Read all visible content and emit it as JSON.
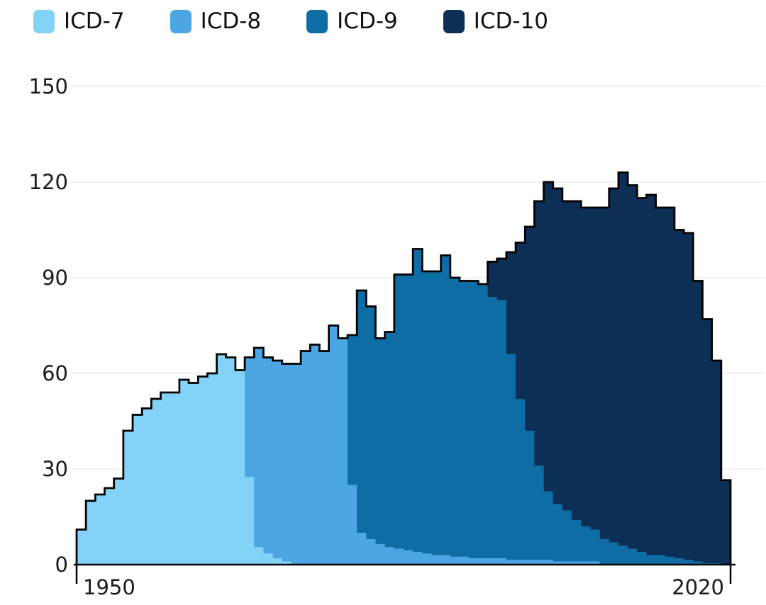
{
  "legend": {
    "items": [
      {
        "label": "ICD-7",
        "color": "#82d3f7"
      },
      {
        "label": "ICD-8",
        "color": "#4ba6e3"
      },
      {
        "label": "ICD-9",
        "color": "#0e6da4"
      },
      {
        "label": "ICD-10",
        "color": "#0d2e55"
      }
    ]
  },
  "chart_data": {
    "type": "area",
    "variant": "stacked-step-area",
    "title": "",
    "xlabel": "",
    "ylabel": "",
    "x_start": 1950,
    "x_end": 2019,
    "x_tick_labels": [
      "1950",
      "2020"
    ],
    "x_tick_values": [
      1950,
      2020
    ],
    "y_ticks": [
      0,
      30,
      60,
      90,
      120,
      150
    ],
    "ylim": [
      0,
      150
    ],
    "grid": true,
    "legend_position": "top-left",
    "outline_color": "#000000",
    "grid_color": "#ebebeb",
    "axis_color": "#000000",
    "tick_label_color": "#1a1a1a",
    "categories": [
      1950,
      1951,
      1952,
      1953,
      1954,
      1955,
      1956,
      1957,
      1958,
      1959,
      1960,
      1961,
      1962,
      1963,
      1964,
      1965,
      1966,
      1967,
      1968,
      1969,
      1970,
      1971,
      1972,
      1973,
      1974,
      1975,
      1976,
      1977,
      1978,
      1979,
      1980,
      1981,
      1982,
      1983,
      1984,
      1985,
      1986,
      1987,
      1988,
      1989,
      1990,
      1991,
      1992,
      1993,
      1994,
      1995,
      1996,
      1997,
      1998,
      1999,
      2000,
      2001,
      2002,
      2003,
      2004,
      2005,
      2006,
      2007,
      2008,
      2009,
      2010,
      2011,
      2012,
      2013,
      2014,
      2015,
      2016,
      2017,
      2018,
      2019
    ],
    "series": [
      {
        "name": "ICD-7",
        "color": "#82d3f7",
        "values": [
          11,
          20,
          22,
          24,
          27,
          42,
          47,
          49,
          52,
          54,
          54,
          58,
          57,
          59,
          60,
          66,
          65,
          61,
          27.5,
          5.5,
          3.5,
          2,
          1,
          0,
          0,
          0,
          0,
          0,
          0,
          0,
          0,
          0,
          0,
          0,
          0,
          0,
          0,
          0,
          0,
          0,
          0,
          0,
          0,
          0,
          0,
          0,
          0,
          0,
          0,
          0,
          0,
          0,
          0,
          0,
          0,
          0,
          0,
          0,
          0,
          0,
          0,
          0,
          0,
          0,
          0,
          0,
          0,
          0,
          0,
          0
        ]
      },
      {
        "name": "ICD-8",
        "color": "#4ba6e3",
        "values": [
          0,
          0,
          0,
          0,
          0,
          0,
          0,
          0,
          0,
          0,
          0,
          0,
          0,
          0,
          0,
          0,
          0,
          0,
          37.5,
          62.5,
          61.5,
          62,
          62,
          63,
          67,
          69,
          67,
          75,
          71,
          25,
          10,
          8,
          6.5,
          5.5,
          5,
          4.5,
          4,
          3.5,
          3,
          3,
          2.5,
          2.5,
          2,
          2,
          2,
          2,
          1.5,
          1.5,
          1.5,
          1.5,
          1.5,
          1,
          1,
          1,
          1,
          1,
          0,
          0,
          0,
          0,
          0,
          0,
          0,
          0,
          0,
          0,
          0,
          0,
          0,
          0
        ]
      },
      {
        "name": "ICD-9",
        "color": "#0e6da4",
        "values": [
          0,
          0,
          0,
          0,
          0,
          0,
          0,
          0,
          0,
          0,
          0,
          0,
          0,
          0,
          0,
          0,
          0,
          0,
          0,
          0,
          0,
          0,
          0,
          0,
          0,
          0,
          0,
          0,
          0,
          47,
          76,
          73,
          64.5,
          67.5,
          86,
          86.5,
          95,
          88.5,
          89,
          94,
          87.5,
          86.5,
          87,
          86,
          82,
          81,
          64.5,
          50.5,
          40.5,
          29.5,
          21.5,
          18,
          16,
          13,
          11,
          10,
          8,
          7,
          6,
          5,
          4,
          3,
          3,
          2.5,
          2,
          1.5,
          1,
          0.5,
          0.5,
          0
        ]
      },
      {
        "name": "ICD-10",
        "color": "#0d2e55",
        "values": [
          0,
          0,
          0,
          0,
          0,
          0,
          0,
          0,
          0,
          0,
          0,
          0,
          0,
          0,
          0,
          0,
          0,
          0,
          0,
          0,
          0,
          0,
          0,
          0,
          0,
          0,
          0,
          0,
          0,
          0,
          0,
          0,
          0,
          0,
          0,
          0,
          0,
          0,
          0,
          0,
          0,
          0,
          0,
          0,
          11,
          13,
          32,
          49,
          64,
          83,
          97,
          99,
          97,
          100,
          100,
          101,
          104,
          111,
          117,
          114,
          111,
          113,
          109,
          109.5,
          103,
          102.5,
          88,
          76.5,
          63.5,
          26.5
        ]
      }
    ]
  }
}
